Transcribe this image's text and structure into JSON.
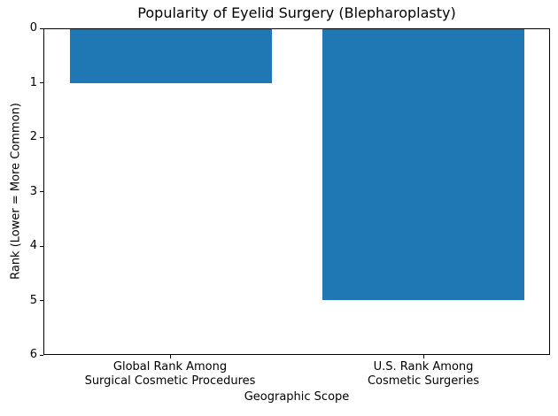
{
  "chart_data": {
    "type": "bar",
    "title": "Popularity of Eyelid Surgery (Blepharoplasty)",
    "xlabel": "Geographic Scope",
    "ylabel": "Rank (Lower = More Common)",
    "categories": [
      "Global Rank Among\nSurgical Cosmetic Procedures",
      "U.S. Rank Among\nCosmetic Surgeries"
    ],
    "values": [
      1,
      5
    ],
    "yticks": [
      0,
      1,
      2,
      3,
      4,
      5,
      6
    ],
    "ylim": [
      0,
      6
    ],
    "y_axis_inverted": true,
    "bar_color": "#1f77b4",
    "grid": false,
    "legend_position": "none"
  }
}
